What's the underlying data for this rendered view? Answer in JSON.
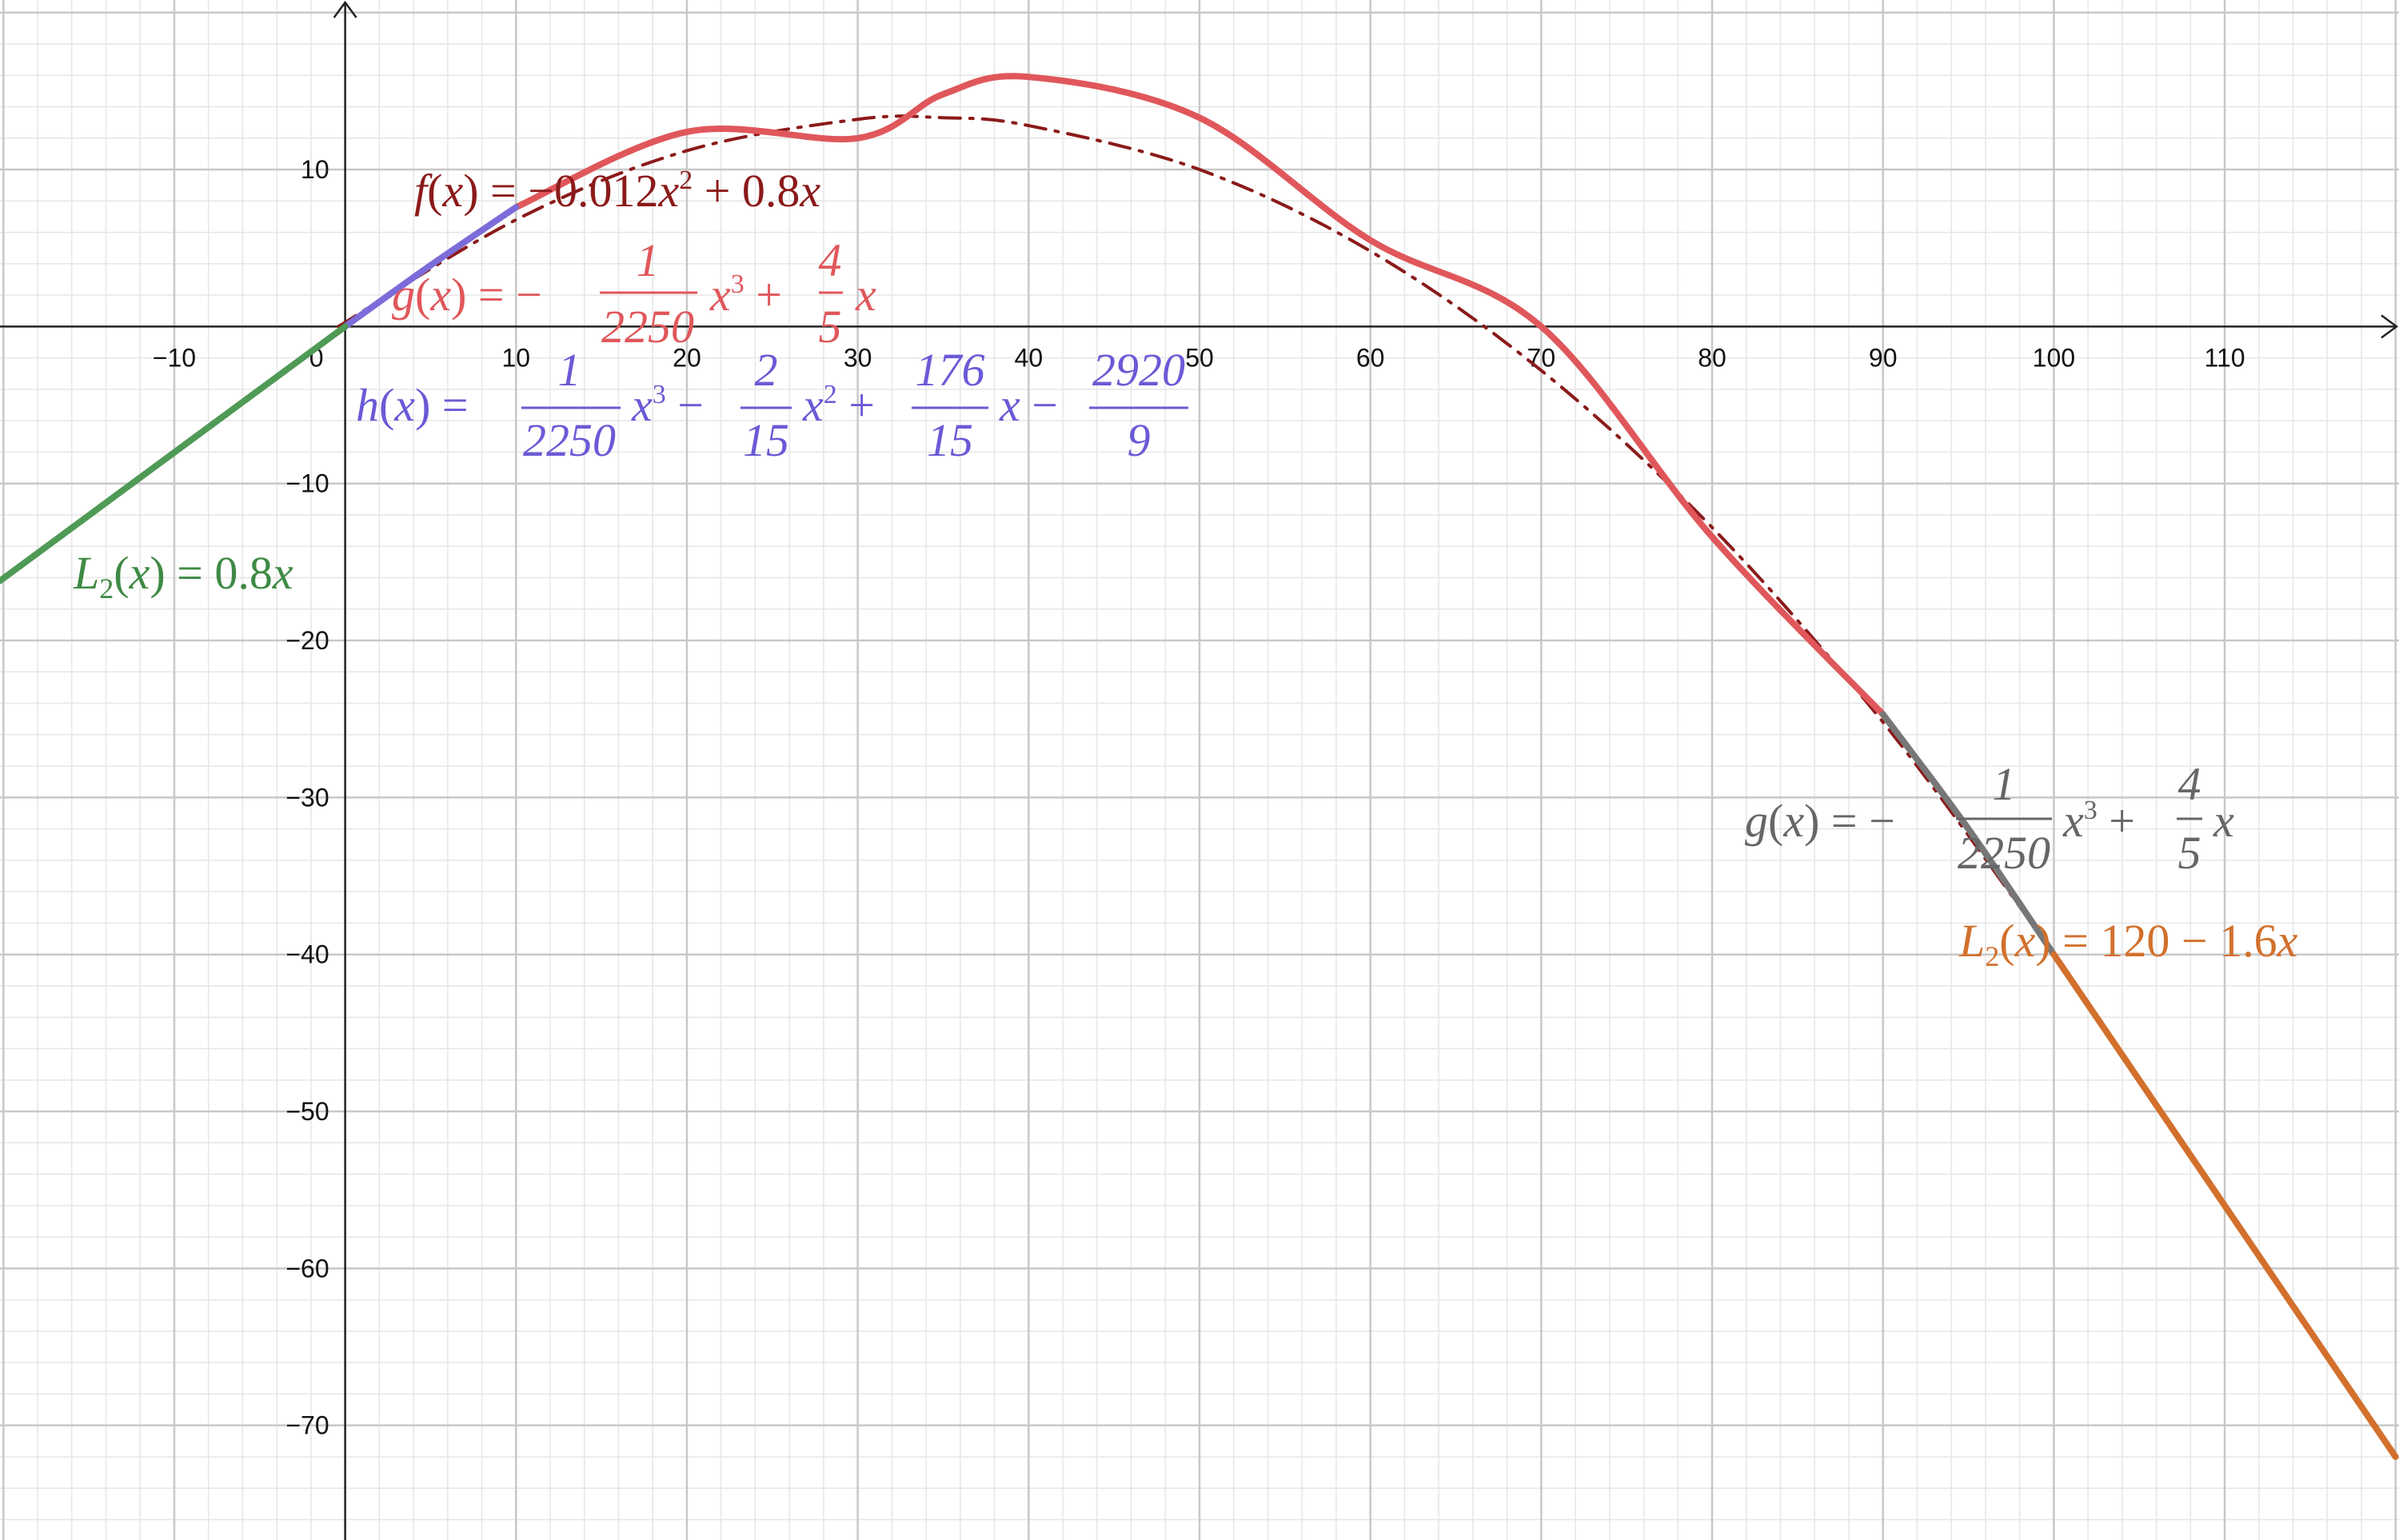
{
  "chart_data": {
    "type": "line",
    "title": "",
    "xlabel": "",
    "ylabel": "",
    "xlim": [
      -20.2,
      120.2
    ],
    "ylim": [
      -77.3,
      20.8
    ],
    "grid": true,
    "x_ticks": [
      -10,
      0,
      10,
      20,
      30,
      40,
      50,
      60,
      70,
      80,
      90,
      100,
      110
    ],
    "x_tick_labels": [
      "−10",
      "0",
      "10",
      "20",
      "30",
      "40",
      "50",
      "60",
      "70",
      "80",
      "90",
      "100",
      "110"
    ],
    "y_ticks": [
      10,
      -10,
      -20,
      -30,
      -40,
      -50,
      -60,
      -70
    ],
    "y_tick_labels": [
      "10",
      "−10",
      "−20",
      "−30",
      "−40",
      "−50",
      "−60",
      "−70"
    ],
    "series": [
      {
        "key": "f",
        "color": "#8b1a1a",
        "style": "dash-dot",
        "x": [
          -0.4,
          10,
          20,
          30,
          35,
          40,
          50,
          60,
          70,
          80,
          90,
          98.9
        ],
        "y": [
          0,
          6.8,
          11.2,
          13.2,
          13.3,
          12.8,
          10,
          4.8,
          -2.8,
          -12.8,
          -25.2,
          -38.3
        ]
      },
      {
        "key": "g",
        "color": "#e0575b",
        "style": "solid",
        "x": [
          10,
          20,
          30,
          35,
          40,
          50,
          60,
          70,
          80,
          90
        ],
        "y": [
          7.6,
          12.4,
          12.0,
          14.8,
          15.9,
          13.3,
          5.5,
          0,
          -13.4,
          -24.7
        ]
      },
      {
        "key": "h",
        "color": "#7b6cd9",
        "style": "solid",
        "x": [
          0,
          5,
          10
        ],
        "y": [
          0,
          3.9,
          7.6
        ]
      },
      {
        "key": "g_right",
        "color": "#777777",
        "style": "solid",
        "x": [
          90,
          95,
          100
        ],
        "y": [
          -24.7,
          -32.0,
          -40.0
        ]
      },
      {
        "key": "L2_left",
        "color": "#4f9a55",
        "style": "solid",
        "x": [
          -20.2,
          0
        ],
        "y": [
          -16.2,
          0
        ]
      },
      {
        "key": "L2_right",
        "color": "#d2702c",
        "style": "solid",
        "x": [
          100,
          120
        ],
        "y": [
          -40,
          -72
        ]
      }
    ],
    "annotations": {
      "f": {
        "name": "f",
        "coef": "−0.012",
        "lin": "0.8"
      },
      "g": {
        "name": "g",
        "num": "1",
        "den": "2250",
        "num2": "4",
        "den2": "5"
      },
      "h": {
        "name": "h",
        "a_num": "1",
        "a_den": "2250",
        "b_num": "2",
        "b_den": "15",
        "c_num": "176",
        "c_den": "15",
        "d_num": "2920",
        "d_den": "9"
      },
      "g2": {
        "name": "g",
        "num": "1",
        "den": "2250",
        "num2": "4",
        "den2": "5"
      },
      "L2a": {
        "name": "L",
        "sub": "2",
        "rhs": "0.8"
      },
      "L2b": {
        "name": "L",
        "sub": "2",
        "rhs": "120 − 1.6"
      }
    }
  }
}
